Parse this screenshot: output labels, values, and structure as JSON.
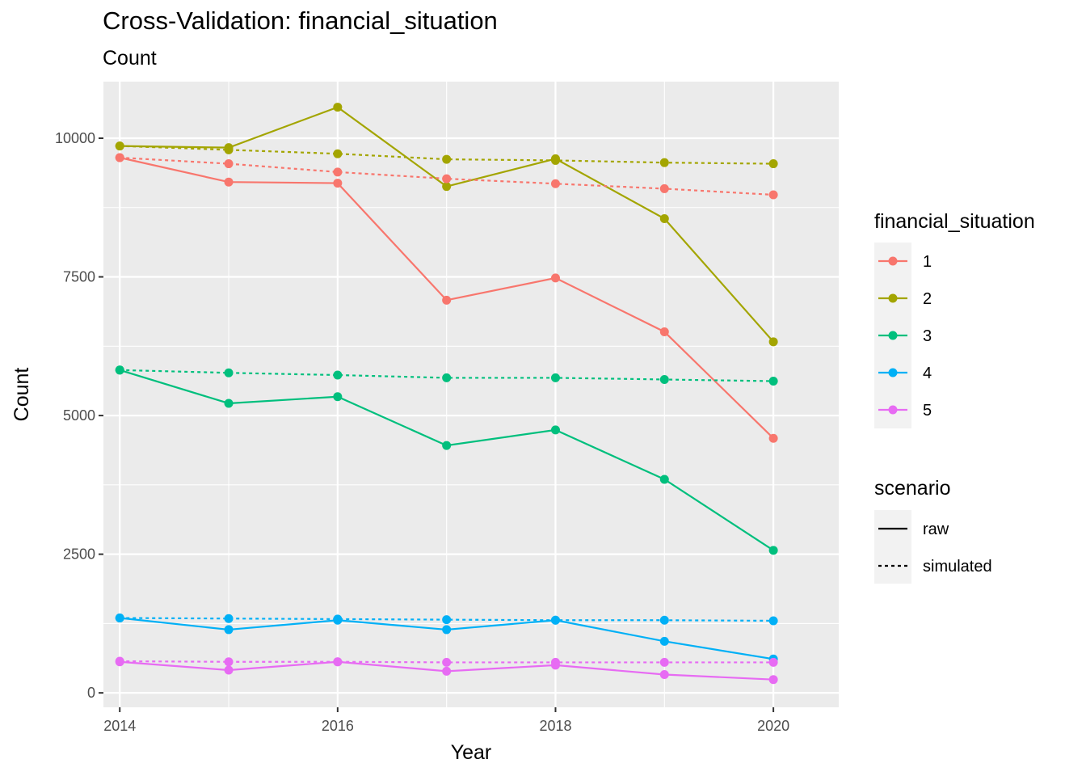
{
  "chart_data": {
    "type": "line",
    "title": "Cross-Validation: financial_situation",
    "subtitle": "Count",
    "xlabel": "Year",
    "ylabel": "Count",
    "xlim": [
      2013.85,
      2020.6
    ],
    "ylim": [
      -260,
      11020
    ],
    "x_ticks": [
      2014,
      2016,
      2018,
      2020
    ],
    "y_ticks": [
      0,
      2500,
      5000,
      7500,
      10000
    ],
    "grid": true,
    "legend_position": "right",
    "x": [
      2014,
      2015,
      2016,
      2017,
      2018,
      2019,
      2020
    ],
    "color_legend": {
      "title": "financial_situation",
      "entries": [
        {
          "label": "1",
          "color": "#F8766D"
        },
        {
          "label": "2",
          "color": "#A3A500"
        },
        {
          "label": "3",
          "color": "#00BF7D"
        },
        {
          "label": "4",
          "color": "#00B0F6"
        },
        {
          "label": "5",
          "color": "#E76BF3"
        }
      ]
    },
    "linetype_legend": {
      "title": "scenario",
      "entries": [
        {
          "label": "raw",
          "dash": "solid"
        },
        {
          "label": "simulated",
          "dash": "dotted"
        }
      ]
    },
    "series": [
      {
        "group": "1",
        "scenario": "raw",
        "color": "#F8766D",
        "values": [
          9650,
          9210,
          9190,
          7080,
          7480,
          6510,
          4590
        ]
      },
      {
        "group": "2",
        "scenario": "raw",
        "color": "#A3A500",
        "values": [
          9860,
          9830,
          10560,
          9130,
          9630,
          8550,
          6330
        ]
      },
      {
        "group": "3",
        "scenario": "raw",
        "color": "#00BF7D",
        "values": [
          5820,
          5220,
          5340,
          4460,
          4740,
          3850,
          2570
        ]
      },
      {
        "group": "4",
        "scenario": "raw",
        "color": "#00B0F6",
        "values": [
          1350,
          1140,
          1310,
          1140,
          1310,
          930,
          610
        ]
      },
      {
        "group": "5",
        "scenario": "raw",
        "color": "#E76BF3",
        "values": [
          560,
          410,
          560,
          390,
          500,
          330,
          240
        ]
      },
      {
        "group": "1",
        "scenario": "simulated",
        "color": "#F8766D",
        "values": [
          9650,
          9540,
          9390,
          9270,
          9180,
          9090,
          8980
        ]
      },
      {
        "group": "2",
        "scenario": "simulated",
        "color": "#A3A500",
        "values": [
          9860,
          9790,
          9720,
          9620,
          9600,
          9560,
          9540
        ]
      },
      {
        "group": "3",
        "scenario": "simulated",
        "color": "#00BF7D",
        "values": [
          5820,
          5770,
          5730,
          5680,
          5680,
          5650,
          5620
        ]
      },
      {
        "group": "4",
        "scenario": "simulated",
        "color": "#00B0F6",
        "values": [
          1350,
          1340,
          1330,
          1320,
          1310,
          1310,
          1300
        ]
      },
      {
        "group": "5",
        "scenario": "simulated",
        "color": "#E76BF3",
        "values": [
          570,
          560,
          560,
          550,
          550,
          550,
          550
        ]
      }
    ]
  }
}
